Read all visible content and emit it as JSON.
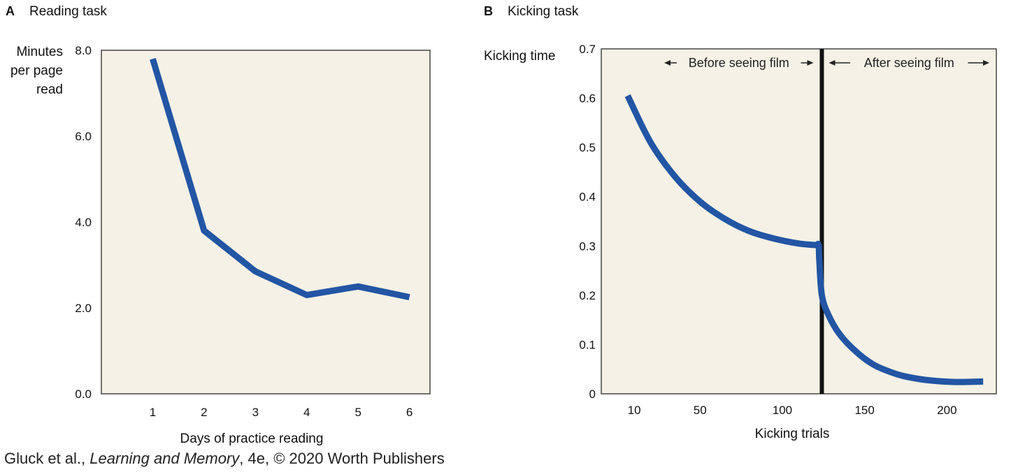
{
  "colors": {
    "plot_bg": "#f5f1e6",
    "line": "#2255a4",
    "frame": "#444444",
    "divider": "#111111"
  },
  "credit": {
    "pre": "Gluck et al., ",
    "book": "Learning and Memory",
    "post": ", 4e, © 2020 Worth Publishers"
  },
  "chart_data": [
    {
      "type": "line",
      "panel": "A",
      "title": "Reading task",
      "xlabel": "Days of practice reading",
      "ylabel": [
        "Minutes",
        "per page",
        "read"
      ],
      "x_ticks": [
        "1",
        "2",
        "3",
        "4",
        "5",
        "6"
      ],
      "y_ticks": [
        "0.0",
        "2.0",
        "4.0",
        "6.0",
        "8.0"
      ],
      "xlim": [
        0,
        6.4
      ],
      "ylim": [
        0,
        8.0
      ],
      "grid": false,
      "series": [
        {
          "x": [
            1,
            2,
            3,
            4,
            5,
            6
          ],
          "y": [
            7.8,
            3.8,
            2.85,
            2.3,
            2.5,
            2.25
          ]
        }
      ]
    },
    {
      "type": "line",
      "panel": "B",
      "title": "Kicking task",
      "xlabel": "Kicking trials",
      "ylabel": [
        "Kicking time"
      ],
      "x_ticks": [
        {
          "label": "10",
          "pos": 10
        },
        {
          "label": "50",
          "pos": 50
        },
        {
          "label": "100",
          "pos": 100
        },
        {
          "label": "150",
          "pos": 150
        },
        {
          "label": "200",
          "pos": 200
        }
      ],
      "y_ticks": [
        "0",
        "0.1",
        "0.2",
        "0.3",
        "0.4",
        "0.5",
        "0.6",
        "0.7"
      ],
      "xlim": [
        -10,
        230
      ],
      "ylim": [
        0,
        0.7
      ],
      "grid": false,
      "divider_x": 124,
      "annotations": [
        {
          "text": "Before seeing film",
          "arrows": "both"
        },
        {
          "text": "After seeing film",
          "arrows": "both"
        }
      ],
      "series": [
        {
          "x": [
            6,
            20,
            35,
            50,
            65,
            80,
            95,
            110,
            120,
            122,
            122.5,
            124,
            128,
            135,
            145,
            155,
            165,
            175,
            190,
            205,
            222
          ],
          "y": [
            0.605,
            0.51,
            0.44,
            0.39,
            0.355,
            0.33,
            0.315,
            0.305,
            0.302,
            0.302,
            0.27,
            0.2,
            0.16,
            0.12,
            0.085,
            0.06,
            0.045,
            0.035,
            0.027,
            0.024,
            0.025
          ]
        }
      ]
    }
  ]
}
